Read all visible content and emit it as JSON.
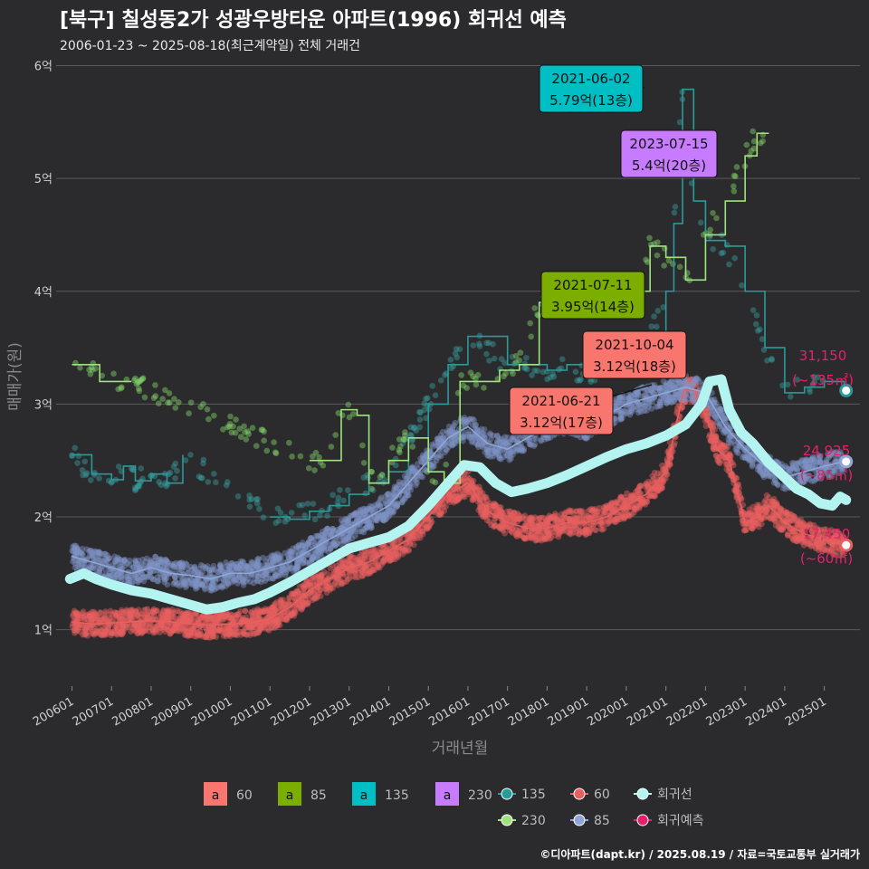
{
  "header": {
    "title": "[북구] 칠성동2가 성광우방타운 아파트(1996) 회귀선 예측",
    "subtitle": "2006-01-23 ~ 2025-08-18(최근계약일) 전체 거래건"
  },
  "footer": "©디아파트(dapt.kr) / 2025.08.19 / 자료=국토교통부 실거래가",
  "chart_data": {
    "type": "line",
    "xlabel": "거래년월",
    "ylabel": "매매가(원)",
    "ylim": [
      0.5,
      6.1
    ],
    "xlim": [
      2005.6,
      2025.9
    ],
    "yticks": [
      {
        "value": 1,
        "label": "1억"
      },
      {
        "value": 2,
        "label": "2억"
      },
      {
        "value": 3,
        "label": "3억"
      },
      {
        "value": 4,
        "label": "4억"
      },
      {
        "value": 5,
        "label": "5억"
      },
      {
        "value": 6,
        "label": "6억"
      }
    ],
    "xticks": [
      "200601",
      "200701",
      "200801",
      "200901",
      "201001",
      "201101",
      "201201",
      "201301",
      "201401",
      "201501",
      "201601",
      "201701",
      "201801",
      "201901",
      "202001",
      "202101",
      "202201",
      "202301",
      "202401",
      "202501"
    ],
    "colors": {
      "a60": "#f8766d",
      "a85": "#7cae00",
      "a135": "#00bfc4",
      "a230": "#c77cff",
      "l135": "#2a9a9a",
      "l230": "#9ee37d",
      "l60": "#e85f5f",
      "l85": "#8fa6d6",
      "regression": "#b3f3f0",
      "forecast": "#e8206a"
    },
    "series": [
      {
        "name": "135",
        "values": [
          [
            2006.0,
            2.55
          ],
          [
            2006.5,
            2.38
          ],
          [
            2007.0,
            2.33
          ],
          [
            2007.3,
            2.45
          ],
          [
            2007.6,
            2.32
          ],
          [
            2008.0,
            2.38
          ],
          [
            2008.4,
            2.3
          ],
          [
            2008.8,
            2.55
          ],
          [
            2011.0,
            2.0
          ],
          [
            2011.5,
            1.98
          ],
          [
            2012.0,
            2.05
          ],
          [
            2012.5,
            2.1
          ],
          [
            2013.0,
            2.2
          ],
          [
            2013.5,
            2.3
          ],
          [
            2014.0,
            2.4
          ],
          [
            2014.5,
            2.7
          ],
          [
            2015.0,
            3.0
          ],
          [
            2015.5,
            3.35
          ],
          [
            2016.0,
            3.6
          ],
          [
            2017.0,
            3.35
          ],
          [
            2018.0,
            3.3
          ],
          [
            2018.5,
            3.35
          ],
          [
            2019.0,
            3.25
          ],
          [
            2019.5,
            3.3
          ],
          [
            2020.0,
            3.4
          ],
          [
            2020.5,
            3.5
          ],
          [
            2021.0,
            4.0
          ],
          [
            2021.2,
            4.6
          ],
          [
            2021.42,
            5.79
          ],
          [
            2021.7,
            4.8
          ],
          [
            2022.0,
            4.45
          ],
          [
            2022.5,
            4.4
          ],
          [
            2023.0,
            4.0
          ],
          [
            2023.5,
            3.5
          ],
          [
            2024.0,
            3.1
          ],
          [
            2024.5,
            3.15
          ],
          [
            2025.0,
            3.2
          ],
          [
            2025.5,
            3.12
          ]
        ]
      },
      {
        "name": "230",
        "values": [
          [
            2006.0,
            3.35
          ],
          [
            2006.4,
            3.35
          ],
          [
            2006.7,
            3.2
          ],
          [
            2007.2,
            3.2
          ],
          [
            2007.5,
            3.2
          ],
          [
            2012.0,
            2.5
          ],
          [
            2012.4,
            2.5
          ],
          [
            2012.8,
            2.95
          ],
          [
            2013.2,
            2.9
          ],
          [
            2013.5,
            2.3
          ],
          [
            2014.0,
            2.5
          ],
          [
            2014.5,
            2.7
          ],
          [
            2015.0,
            2.4
          ],
          [
            2015.4,
            2.3
          ],
          [
            2015.8,
            3.2
          ],
          [
            2016.2,
            3.2
          ],
          [
            2016.8,
            3.3
          ],
          [
            2017.3,
            3.35
          ],
          [
            2017.8,
            3.9
          ],
          [
            2018.3,
            4.1
          ],
          [
            2018.8,
            3.9
          ],
          [
            2019.3,
            3.95
          ],
          [
            2019.8,
            4.1
          ],
          [
            2020.2,
            4.0
          ],
          [
            2020.6,
            4.4
          ],
          [
            2021.0,
            4.3
          ],
          [
            2021.5,
            4.1
          ],
          [
            2022.0,
            4.5
          ],
          [
            2022.5,
            4.8
          ],
          [
            2023.0,
            5.2
          ],
          [
            2023.3,
            5.4
          ],
          [
            2023.6,
            5.4
          ]
        ]
      },
      {
        "name": "60",
        "values": [
          [
            2006.0,
            1.07
          ],
          [
            2006.5,
            1.05
          ],
          [
            2007.0,
            1.06
          ],
          [
            2007.5,
            1.07
          ],
          [
            2008.0,
            1.08
          ],
          [
            2008.5,
            1.07
          ],
          [
            2009.0,
            1.05
          ],
          [
            2009.5,
            1.04
          ],
          [
            2010.0,
            1.05
          ],
          [
            2010.5,
            1.06
          ],
          [
            2011.0,
            1.1
          ],
          [
            2011.5,
            1.2
          ],
          [
            2012.0,
            1.35
          ],
          [
            2012.5,
            1.45
          ],
          [
            2013.0,
            1.55
          ],
          [
            2013.5,
            1.6
          ],
          [
            2014.0,
            1.7
          ],
          [
            2014.5,
            1.8
          ],
          [
            2015.0,
            2.0
          ],
          [
            2015.5,
            2.2
          ],
          [
            2016.0,
            2.3
          ],
          [
            2016.5,
            2.05
          ],
          [
            2017.0,
            1.95
          ],
          [
            2017.5,
            1.9
          ],
          [
            2018.0,
            1.9
          ],
          [
            2018.5,
            1.95
          ],
          [
            2019.0,
            1.95
          ],
          [
            2019.5,
            2.0
          ],
          [
            2020.0,
            2.1
          ],
          [
            2020.5,
            2.2
          ],
          [
            2021.0,
            2.4
          ],
          [
            2021.45,
            3.12
          ],
          [
            2021.75,
            3.12
          ],
          [
            2022.0,
            2.9
          ],
          [
            2022.3,
            2.6
          ],
          [
            2022.6,
            2.5
          ],
          [
            2023.0,
            1.95
          ],
          [
            2023.3,
            2.0
          ],
          [
            2023.6,
            2.1
          ],
          [
            2024.0,
            1.95
          ],
          [
            2024.5,
            1.85
          ],
          [
            2025.0,
            1.8
          ],
          [
            2025.5,
            1.75
          ]
        ]
      },
      {
        "name": "85",
        "values": [
          [
            2006.0,
            1.65
          ],
          [
            2006.5,
            1.6
          ],
          [
            2007.0,
            1.55
          ],
          [
            2007.5,
            1.5
          ],
          [
            2008.0,
            1.55
          ],
          [
            2008.5,
            1.5
          ],
          [
            2009.0,
            1.48
          ],
          [
            2009.5,
            1.45
          ],
          [
            2010.0,
            1.5
          ],
          [
            2010.5,
            1.5
          ],
          [
            2011.0,
            1.55
          ],
          [
            2011.5,
            1.6
          ],
          [
            2012.0,
            1.7
          ],
          [
            2012.5,
            1.8
          ],
          [
            2013.0,
            1.9
          ],
          [
            2013.5,
            2.0
          ],
          [
            2014.0,
            2.1
          ],
          [
            2014.5,
            2.3
          ],
          [
            2015.0,
            2.5
          ],
          [
            2015.5,
            2.7
          ],
          [
            2016.0,
            2.8
          ],
          [
            2016.5,
            2.65
          ],
          [
            2017.0,
            2.6
          ],
          [
            2017.5,
            2.7
          ],
          [
            2018.0,
            2.8
          ],
          [
            2018.5,
            2.85
          ],
          [
            2019.0,
            2.8
          ],
          [
            2019.5,
            2.9
          ],
          [
            2020.0,
            3.0
          ],
          [
            2020.5,
            3.05
          ],
          [
            2021.0,
            3.1
          ],
          [
            2021.5,
            3.15
          ],
          [
            2022.0,
            3.1
          ],
          [
            2022.5,
            2.8
          ],
          [
            2023.0,
            2.6
          ],
          [
            2023.5,
            2.45
          ],
          [
            2024.0,
            2.35
          ],
          [
            2024.5,
            2.4
          ],
          [
            2025.0,
            2.45
          ],
          [
            2025.5,
            2.49
          ]
        ]
      },
      {
        "name": "회귀선",
        "values": [
          [
            2005.95,
            1.45
          ],
          [
            2006.3,
            1.5
          ],
          [
            2006.6,
            1.45
          ],
          [
            2007.0,
            1.4
          ],
          [
            2007.5,
            1.35
          ],
          [
            2008.0,
            1.32
          ],
          [
            2008.5,
            1.27
          ],
          [
            2009.0,
            1.22
          ],
          [
            2009.4,
            1.18
          ],
          [
            2009.8,
            1.2
          ],
          [
            2010.2,
            1.24
          ],
          [
            2010.6,
            1.27
          ],
          [
            2011.0,
            1.33
          ],
          [
            2011.5,
            1.42
          ],
          [
            2012.0,
            1.52
          ],
          [
            2012.5,
            1.62
          ],
          [
            2013.0,
            1.72
          ],
          [
            2013.5,
            1.77
          ],
          [
            2014.0,
            1.82
          ],
          [
            2014.5,
            1.92
          ],
          [
            2015.0,
            2.1
          ],
          [
            2015.5,
            2.3
          ],
          [
            2015.9,
            2.46
          ],
          [
            2016.3,
            2.44
          ],
          [
            2016.7,
            2.3
          ],
          [
            2017.1,
            2.22
          ],
          [
            2017.5,
            2.25
          ],
          [
            2018.0,
            2.3
          ],
          [
            2018.5,
            2.37
          ],
          [
            2019.0,
            2.45
          ],
          [
            2019.5,
            2.53
          ],
          [
            2020.0,
            2.6
          ],
          [
            2020.5,
            2.65
          ],
          [
            2021.0,
            2.72
          ],
          [
            2021.5,
            2.82
          ],
          [
            2021.9,
            3.0
          ],
          [
            2022.1,
            3.2
          ],
          [
            2022.4,
            3.22
          ],
          [
            2022.6,
            2.95
          ],
          [
            2022.9,
            2.75
          ],
          [
            2023.2,
            2.65
          ],
          [
            2023.6,
            2.48
          ],
          [
            2024.0,
            2.35
          ],
          [
            2024.3,
            2.25
          ],
          [
            2024.6,
            2.2
          ],
          [
            2024.9,
            2.12
          ],
          [
            2025.2,
            2.1
          ],
          [
            2025.4,
            2.18
          ],
          [
            2025.55,
            2.15
          ]
        ]
      }
    ],
    "callouts": [
      {
        "date": "2021-06-02",
        "price": "5.79억(13층)",
        "bg": "#00bfc4"
      },
      {
        "date": "2023-07-15",
        "price": "5.4억(20층)",
        "bg": "#c77cff"
      },
      {
        "date": "2021-07-11",
        "price": "3.95억(14층)",
        "bg": "#7cae00"
      },
      {
        "date": "2021-10-04",
        "price": "3.12억(18층)",
        "bg": "#f8766d"
      },
      {
        "date": "2021-06-21",
        "price": "3.12억(17층)",
        "bg": "#f8766d"
      }
    ],
    "end_labels": [
      {
        "value": "31,150",
        "area": "(~135㎡)",
        "y": 3.115
      },
      {
        "value": "24,925",
        "area": "(~85㎡)",
        "y": 2.4925
      },
      {
        "value": "17,450",
        "area": "(~60㎡)",
        "y": 1.745
      }
    ],
    "legend": {
      "fill": [
        {
          "glyph": "a",
          "label": "60",
          "color": "#f8766d"
        },
        {
          "glyph": "a",
          "label": "85",
          "color": "#7cae00"
        },
        {
          "glyph": "a",
          "label": "135",
          "color": "#00bfc4"
        },
        {
          "glyph": "a",
          "label": "230",
          "color": "#c77cff"
        }
      ],
      "lines": [
        {
          "label": "135",
          "color": "#2a9a9a"
        },
        {
          "label": "60",
          "color": "#e85f5f"
        },
        {
          "label": "회귀선",
          "color": "#b3f3f0"
        },
        {
          "label": "230",
          "color": "#9ee37d"
        },
        {
          "label": "85",
          "color": "#8fa6d6"
        },
        {
          "label": "회귀예측",
          "color": "#e8206a"
        }
      ]
    }
  }
}
